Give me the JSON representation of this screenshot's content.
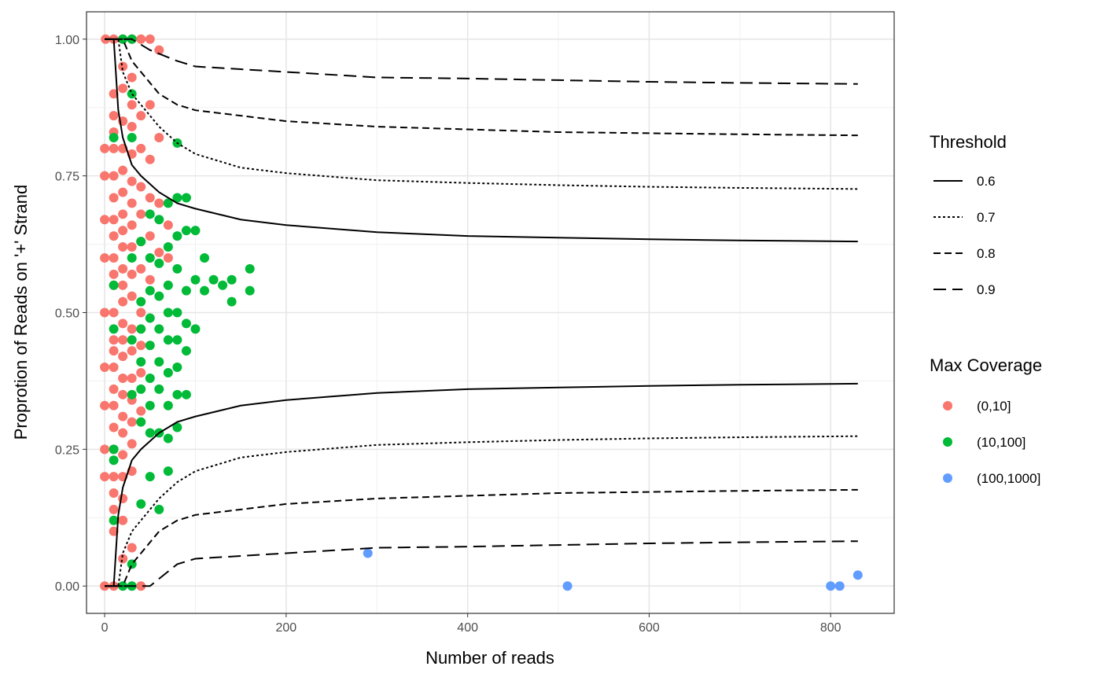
{
  "chart_data": {
    "type": "scatter",
    "xlabel": "Number of reads",
    "ylabel": "Proprotion of Reads on '+' Strand",
    "xlim": [
      -20,
      870
    ],
    "ylim": [
      -0.05,
      1.05
    ],
    "x_ticks": [
      0,
      200,
      400,
      600,
      800
    ],
    "x_tick_labels": [
      "0",
      "200",
      "400",
      "600",
      "800"
    ],
    "y_ticks": [
      0,
      0.25,
      0.5,
      0.75,
      1
    ],
    "y_tick_labels": [
      "0.00",
      "0.25",
      "0.50",
      "0.75",
      "1.00"
    ],
    "grid": true,
    "legend_placement": "right",
    "threshold_legend": {
      "title": "Threshold",
      "entries": [
        {
          "label": "0.6",
          "dash": "solid"
        },
        {
          "label": "0.7",
          "dash": "dotted"
        },
        {
          "label": "0.8",
          "dash": "dashed"
        },
        {
          "label": "0.9",
          "dash": "longdash"
        }
      ]
    },
    "coverage_legend": {
      "title": "Max Coverage",
      "entries": [
        {
          "label": "(0,10]",
          "color": "#F8766D"
        },
        {
          "label": "(10,100]",
          "color": "#00BA38"
        },
        {
          "label": "(100,1000]",
          "color": "#619CFF"
        }
      ]
    },
    "threshold_curves": [
      {
        "label": "0.6",
        "dash": "solid",
        "x": [
          10,
          15,
          20,
          30,
          40,
          60,
          80,
          100,
          150,
          200,
          300,
          400,
          500,
          600,
          700,
          830
        ],
        "upper": [
          1.0,
          0.87,
          0.82,
          0.77,
          0.75,
          0.72,
          0.7,
          0.69,
          0.67,
          0.66,
          0.647,
          0.64,
          0.637,
          0.634,
          0.632,
          0.63
        ],
        "lower": [
          0.0,
          0.13,
          0.18,
          0.23,
          0.25,
          0.28,
          0.3,
          0.31,
          0.33,
          0.34,
          0.353,
          0.36,
          0.363,
          0.366,
          0.368,
          0.37
        ]
      },
      {
        "label": "0.7",
        "dash": "dotted",
        "x": [
          15,
          20,
          30,
          40,
          60,
          80,
          100,
          150,
          200,
          300,
          400,
          500,
          600,
          700,
          830
        ],
        "upper": [
          1.0,
          0.94,
          0.9,
          0.88,
          0.84,
          0.81,
          0.79,
          0.765,
          0.755,
          0.742,
          0.737,
          0.733,
          0.73,
          0.728,
          0.726
        ],
        "lower": [
          0.0,
          0.06,
          0.1,
          0.12,
          0.16,
          0.19,
          0.21,
          0.235,
          0.245,
          0.258,
          0.263,
          0.267,
          0.27,
          0.272,
          0.274
        ]
      },
      {
        "label": "0.8",
        "dash": "dashed",
        "x": [
          20,
          30,
          40,
          60,
          80,
          100,
          150,
          200,
          300,
          400,
          500,
          600,
          700,
          830
        ],
        "upper": [
          1.0,
          0.96,
          0.94,
          0.9,
          0.88,
          0.87,
          0.86,
          0.85,
          0.84,
          0.835,
          0.83,
          0.828,
          0.826,
          0.824
        ],
        "lower": [
          0.0,
          0.04,
          0.06,
          0.1,
          0.12,
          0.13,
          0.14,
          0.15,
          0.16,
          0.165,
          0.17,
          0.172,
          0.174,
          0.176
        ]
      },
      {
        "label": "0.9",
        "dash": "longdash",
        "x": [
          30,
          50,
          80,
          100,
          150,
          200,
          300,
          400,
          500,
          600,
          700,
          830
        ],
        "upper": [
          1.0,
          0.98,
          0.96,
          0.95,
          0.945,
          0.94,
          0.93,
          0.928,
          0.925,
          0.922,
          0.92,
          0.918
        ],
        "lower": [
          0.0,
          0.0,
          0.04,
          0.05,
          0.055,
          0.06,
          0.07,
          0.072,
          0.075,
          0.078,
          0.08,
          0.082
        ]
      }
    ],
    "points": [
      {
        "x": 1,
        "y": 1.0,
        "g": 0
      },
      {
        "x": 10,
        "y": 1.0,
        "g": 0
      },
      {
        "x": 20,
        "y": 1.0,
        "g": 0
      },
      {
        "x": 30,
        "y": 1.0,
        "g": 0
      },
      {
        "x": 40,
        "y": 1.0,
        "g": 0
      },
      {
        "x": 50,
        "y": 1.0,
        "g": 0
      },
      {
        "x": 60,
        "y": 0.98,
        "g": 0
      },
      {
        "x": 0,
        "y": 0.8,
        "g": 0
      },
      {
        "x": 0,
        "y": 0.75,
        "g": 0
      },
      {
        "x": 0,
        "y": 0.67,
        "g": 0
      },
      {
        "x": 0,
        "y": 0.6,
        "g": 0
      },
      {
        "x": 0,
        "y": 0.5,
        "g": 0
      },
      {
        "x": 0,
        "y": 0.4,
        "g": 0
      },
      {
        "x": 0,
        "y": 0.33,
        "g": 0
      },
      {
        "x": 0,
        "y": 0.25,
        "g": 0
      },
      {
        "x": 0,
        "y": 0.2,
        "g": 0
      },
      {
        "x": 0,
        "y": 0.0,
        "g": 0
      },
      {
        "x": 10,
        "y": 0.9,
        "g": 0
      },
      {
        "x": 10,
        "y": 0.86,
        "g": 0
      },
      {
        "x": 10,
        "y": 0.83,
        "g": 0
      },
      {
        "x": 10,
        "y": 0.8,
        "g": 0
      },
      {
        "x": 10,
        "y": 0.75,
        "g": 0
      },
      {
        "x": 10,
        "y": 0.71,
        "g": 0
      },
      {
        "x": 10,
        "y": 0.67,
        "g": 0
      },
      {
        "x": 10,
        "y": 0.64,
        "g": 0
      },
      {
        "x": 10,
        "y": 0.6,
        "g": 0
      },
      {
        "x": 10,
        "y": 0.57,
        "g": 0
      },
      {
        "x": 10,
        "y": 0.55,
        "g": 0
      },
      {
        "x": 10,
        "y": 0.5,
        "g": 0
      },
      {
        "x": 10,
        "y": 0.45,
        "g": 0
      },
      {
        "x": 10,
        "y": 0.43,
        "g": 0
      },
      {
        "x": 10,
        "y": 0.4,
        "g": 0
      },
      {
        "x": 10,
        "y": 0.36,
        "g": 0
      },
      {
        "x": 10,
        "y": 0.33,
        "g": 0
      },
      {
        "x": 10,
        "y": 0.29,
        "g": 0
      },
      {
        "x": 10,
        "y": 0.25,
        "g": 0
      },
      {
        "x": 10,
        "y": 0.2,
        "g": 0
      },
      {
        "x": 10,
        "y": 0.17,
        "g": 0
      },
      {
        "x": 10,
        "y": 0.14,
        "g": 0
      },
      {
        "x": 10,
        "y": 0.1,
        "g": 0
      },
      {
        "x": 10,
        "y": 0.0,
        "g": 0
      },
      {
        "x": 20,
        "y": 0.95,
        "g": 0
      },
      {
        "x": 20,
        "y": 0.91,
        "g": 0
      },
      {
        "x": 20,
        "y": 0.85,
        "g": 0
      },
      {
        "x": 20,
        "y": 0.8,
        "g": 0
      },
      {
        "x": 20,
        "y": 0.76,
        "g": 0
      },
      {
        "x": 20,
        "y": 0.72,
        "g": 0
      },
      {
        "x": 20,
        "y": 0.68,
        "g": 0
      },
      {
        "x": 20,
        "y": 0.65,
        "g": 0
      },
      {
        "x": 20,
        "y": 0.62,
        "g": 0
      },
      {
        "x": 20,
        "y": 0.58,
        "g": 0
      },
      {
        "x": 20,
        "y": 0.55,
        "g": 0
      },
      {
        "x": 20,
        "y": 0.52,
        "g": 0
      },
      {
        "x": 20,
        "y": 0.48,
        "g": 0
      },
      {
        "x": 20,
        "y": 0.45,
        "g": 0
      },
      {
        "x": 20,
        "y": 0.42,
        "g": 0
      },
      {
        "x": 20,
        "y": 0.38,
        "g": 0
      },
      {
        "x": 20,
        "y": 0.35,
        "g": 0
      },
      {
        "x": 20,
        "y": 0.31,
        "g": 0
      },
      {
        "x": 20,
        "y": 0.28,
        "g": 0
      },
      {
        "x": 20,
        "y": 0.24,
        "g": 0
      },
      {
        "x": 20,
        "y": 0.2,
        "g": 0
      },
      {
        "x": 20,
        "y": 0.16,
        "g": 0
      },
      {
        "x": 20,
        "y": 0.12,
        "g": 0
      },
      {
        "x": 20,
        "y": 0.05,
        "g": 0
      },
      {
        "x": 30,
        "y": 0.93,
        "g": 0
      },
      {
        "x": 30,
        "y": 0.88,
        "g": 0
      },
      {
        "x": 30,
        "y": 0.84,
        "g": 0
      },
      {
        "x": 30,
        "y": 0.79,
        "g": 0
      },
      {
        "x": 30,
        "y": 0.74,
        "g": 0
      },
      {
        "x": 30,
        "y": 0.7,
        "g": 0
      },
      {
        "x": 30,
        "y": 0.66,
        "g": 0
      },
      {
        "x": 30,
        "y": 0.62,
        "g": 0
      },
      {
        "x": 30,
        "y": 0.57,
        "g": 0
      },
      {
        "x": 30,
        "y": 0.53,
        "g": 0
      },
      {
        "x": 30,
        "y": 0.47,
        "g": 0
      },
      {
        "x": 30,
        "y": 0.43,
        "g": 0
      },
      {
        "x": 30,
        "y": 0.38,
        "g": 0
      },
      {
        "x": 30,
        "y": 0.34,
        "g": 0
      },
      {
        "x": 30,
        "y": 0.3,
        "g": 0
      },
      {
        "x": 30,
        "y": 0.26,
        "g": 0
      },
      {
        "x": 30,
        "y": 0.21,
        "g": 0
      },
      {
        "x": 30,
        "y": 0.07,
        "g": 0
      },
      {
        "x": 40,
        "y": 0.86,
        "g": 0
      },
      {
        "x": 40,
        "y": 0.8,
        "g": 0
      },
      {
        "x": 40,
        "y": 0.73,
        "g": 0
      },
      {
        "x": 40,
        "y": 0.68,
        "g": 0
      },
      {
        "x": 40,
        "y": 0.63,
        "g": 0
      },
      {
        "x": 40,
        "y": 0.58,
        "g": 0
      },
      {
        "x": 40,
        "y": 0.5,
        "g": 0
      },
      {
        "x": 40,
        "y": 0.44,
        "g": 0
      },
      {
        "x": 40,
        "y": 0.39,
        "g": 0
      },
      {
        "x": 40,
        "y": 0.32,
        "g": 0
      },
      {
        "x": 40,
        "y": 0.0,
        "g": 0
      },
      {
        "x": 50,
        "y": 0.88,
        "g": 0
      },
      {
        "x": 50,
        "y": 0.78,
        "g": 0
      },
      {
        "x": 50,
        "y": 0.71,
        "g": 0
      },
      {
        "x": 50,
        "y": 0.64,
        "g": 0
      },
      {
        "x": 50,
        "y": 0.56,
        "g": 0
      },
      {
        "x": 60,
        "y": 0.82,
        "g": 0
      },
      {
        "x": 60,
        "y": 0.7,
        "g": 0
      },
      {
        "x": 60,
        "y": 0.61,
        "g": 0
      },
      {
        "x": 70,
        "y": 0.66,
        "g": 0
      },
      {
        "x": 70,
        "y": 0.6,
        "g": 0
      },
      {
        "x": 20,
        "y": 1.0,
        "g": 1
      },
      {
        "x": 30,
        "y": 1.0,
        "g": 1
      },
      {
        "x": 30,
        "y": 0.9,
        "g": 1
      },
      {
        "x": 30,
        "y": 0.82,
        "g": 1
      },
      {
        "x": 10,
        "y": 0.82,
        "g": 1
      },
      {
        "x": 10,
        "y": 0.55,
        "g": 1
      },
      {
        "x": 10,
        "y": 0.47,
        "g": 1
      },
      {
        "x": 10,
        "y": 0.25,
        "g": 1
      },
      {
        "x": 10,
        "y": 0.23,
        "g": 1
      },
      {
        "x": 10,
        "y": 0.12,
        "g": 1
      },
      {
        "x": 20,
        "y": 0.0,
        "g": 1
      },
      {
        "x": 30,
        "y": 0.0,
        "g": 1
      },
      {
        "x": 30,
        "y": 0.04,
        "g": 1
      },
      {
        "x": 30,
        "y": 0.35,
        "g": 1
      },
      {
        "x": 30,
        "y": 0.45,
        "g": 1
      },
      {
        "x": 30,
        "y": 0.6,
        "g": 1
      },
      {
        "x": 40,
        "y": 0.52,
        "g": 1
      },
      {
        "x": 40,
        "y": 0.47,
        "g": 1
      },
      {
        "x": 40,
        "y": 0.41,
        "g": 1
      },
      {
        "x": 40,
        "y": 0.36,
        "g": 1
      },
      {
        "x": 40,
        "y": 0.3,
        "g": 1
      },
      {
        "x": 40,
        "y": 0.15,
        "g": 1
      },
      {
        "x": 40,
        "y": 0.63,
        "g": 1
      },
      {
        "x": 50,
        "y": 0.68,
        "g": 1
      },
      {
        "x": 50,
        "y": 0.6,
        "g": 1
      },
      {
        "x": 50,
        "y": 0.54,
        "g": 1
      },
      {
        "x": 50,
        "y": 0.49,
        "g": 1
      },
      {
        "x": 50,
        "y": 0.44,
        "g": 1
      },
      {
        "x": 50,
        "y": 0.38,
        "g": 1
      },
      {
        "x": 50,
        "y": 0.33,
        "g": 1
      },
      {
        "x": 50,
        "y": 0.28,
        "g": 1
      },
      {
        "x": 50,
        "y": 0.2,
        "g": 1
      },
      {
        "x": 60,
        "y": 0.67,
        "g": 1
      },
      {
        "x": 60,
        "y": 0.59,
        "g": 1
      },
      {
        "x": 60,
        "y": 0.53,
        "g": 1
      },
      {
        "x": 60,
        "y": 0.47,
        "g": 1
      },
      {
        "x": 60,
        "y": 0.41,
        "g": 1
      },
      {
        "x": 60,
        "y": 0.36,
        "g": 1
      },
      {
        "x": 60,
        "y": 0.28,
        "g": 1
      },
      {
        "x": 60,
        "y": 0.14,
        "g": 1
      },
      {
        "x": 70,
        "y": 0.7,
        "g": 1
      },
      {
        "x": 70,
        "y": 0.62,
        "g": 1
      },
      {
        "x": 70,
        "y": 0.55,
        "g": 1
      },
      {
        "x": 70,
        "y": 0.5,
        "g": 1
      },
      {
        "x": 70,
        "y": 0.45,
        "g": 1
      },
      {
        "x": 70,
        "y": 0.39,
        "g": 1
      },
      {
        "x": 70,
        "y": 0.33,
        "g": 1
      },
      {
        "x": 70,
        "y": 0.27,
        "g": 1
      },
      {
        "x": 70,
        "y": 0.21,
        "g": 1
      },
      {
        "x": 80,
        "y": 0.81,
        "g": 1
      },
      {
        "x": 80,
        "y": 0.71,
        "g": 1
      },
      {
        "x": 80,
        "y": 0.64,
        "g": 1
      },
      {
        "x": 80,
        "y": 0.58,
        "g": 1
      },
      {
        "x": 80,
        "y": 0.5,
        "g": 1
      },
      {
        "x": 80,
        "y": 0.45,
        "g": 1
      },
      {
        "x": 80,
        "y": 0.4,
        "g": 1
      },
      {
        "x": 80,
        "y": 0.35,
        "g": 1
      },
      {
        "x": 80,
        "y": 0.29,
        "g": 1
      },
      {
        "x": 90,
        "y": 0.71,
        "g": 1
      },
      {
        "x": 90,
        "y": 0.65,
        "g": 1
      },
      {
        "x": 90,
        "y": 0.54,
        "g": 1
      },
      {
        "x": 90,
        "y": 0.48,
        "g": 1
      },
      {
        "x": 90,
        "y": 0.43,
        "g": 1
      },
      {
        "x": 90,
        "y": 0.35,
        "g": 1
      },
      {
        "x": 100,
        "y": 0.65,
        "g": 1
      },
      {
        "x": 100,
        "y": 0.56,
        "g": 1
      },
      {
        "x": 100,
        "y": 0.47,
        "g": 1
      },
      {
        "x": 110,
        "y": 0.6,
        "g": 1
      },
      {
        "x": 110,
        "y": 0.54,
        "g": 1
      },
      {
        "x": 120,
        "y": 0.56,
        "g": 1
      },
      {
        "x": 130,
        "y": 0.55,
        "g": 1
      },
      {
        "x": 140,
        "y": 0.56,
        "g": 1
      },
      {
        "x": 140,
        "y": 0.52,
        "g": 1
      },
      {
        "x": 160,
        "y": 0.58,
        "g": 1
      },
      {
        "x": 160,
        "y": 0.54,
        "g": 1
      },
      {
        "x": 290,
        "y": 0.06,
        "g": 2
      },
      {
        "x": 510,
        "y": 0.0,
        "g": 2
      },
      {
        "x": 800,
        "y": 0.0,
        "g": 2
      },
      {
        "x": 810,
        "y": 0.0,
        "g": 2
      },
      {
        "x": 830,
        "y": 0.02,
        "g": 2
      }
    ]
  }
}
